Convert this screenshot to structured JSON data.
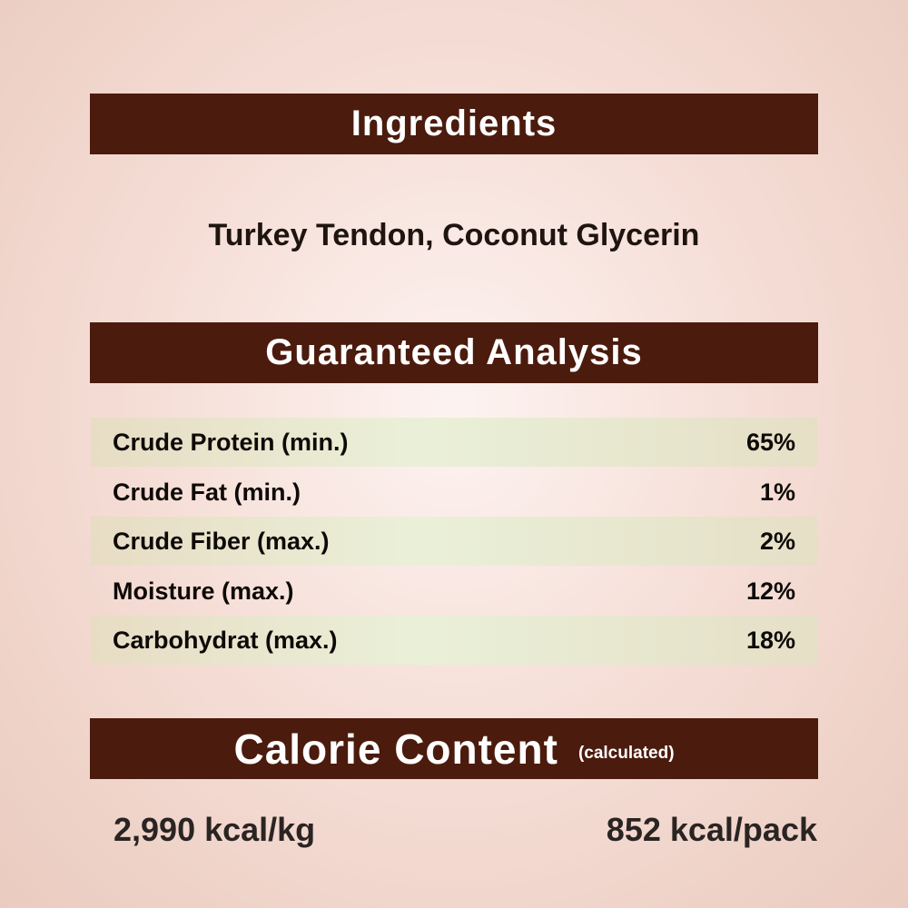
{
  "ingredients": {
    "heading": "Ingredients",
    "text": "Turkey Tendon, Coconut Glycerin"
  },
  "analysis": {
    "heading": "Guaranteed Analysis",
    "rows": [
      {
        "label": "Crude Protein (min.)",
        "value": "65%"
      },
      {
        "label": "Crude Fat (min.)",
        "value": "1%"
      },
      {
        "label": "Crude Fiber (max.)",
        "value": "2%"
      },
      {
        "label": "Moisture (max.)",
        "value": "12%"
      },
      {
        "label": "Carbohydrat (max.)",
        "value": "18%"
      }
    ]
  },
  "calorie": {
    "heading": "Calorie Content",
    "note": "(calculated)",
    "per_kg": "2,990 kcal/kg",
    "per_pack": "852 kcal/pack"
  },
  "colors": {
    "banner": "#4b1b0d",
    "row_shade": "#e8e4cc",
    "text": "#0e0a08"
  }
}
